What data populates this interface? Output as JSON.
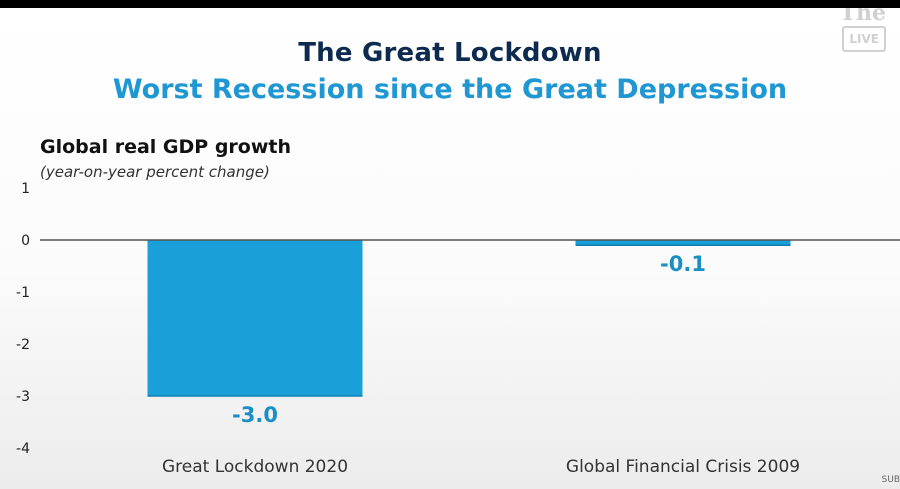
{
  "slide": {
    "title": "The Great Lockdown",
    "subtitle": "Worst Recession since the Great Depression",
    "watermark": {
      "line1": "The",
      "badge": "LIVE"
    },
    "corner_text": "SUB"
  },
  "chart_data": {
    "type": "bar",
    "title": "Global real GDP growth",
    "subtitle": "(year-on-year percent change)",
    "categories": [
      "Great Lockdown 2020",
      "Global Financial Crisis 2009"
    ],
    "values": [
      -3.0,
      -0.1
    ],
    "value_labels": [
      "-3.0",
      "-0.1"
    ],
    "ylim": [
      -4,
      1
    ],
    "yticks": [
      1,
      0,
      -1,
      -2,
      -3,
      -4
    ],
    "ytick_labels": [
      "1",
      "0",
      "-1",
      "-2",
      "-3",
      "-4"
    ],
    "grid": false,
    "legend": "none",
    "colors": {
      "bar": "#1aa0d8",
      "label": "#1a8fc6",
      "axis": "#555555"
    }
  }
}
